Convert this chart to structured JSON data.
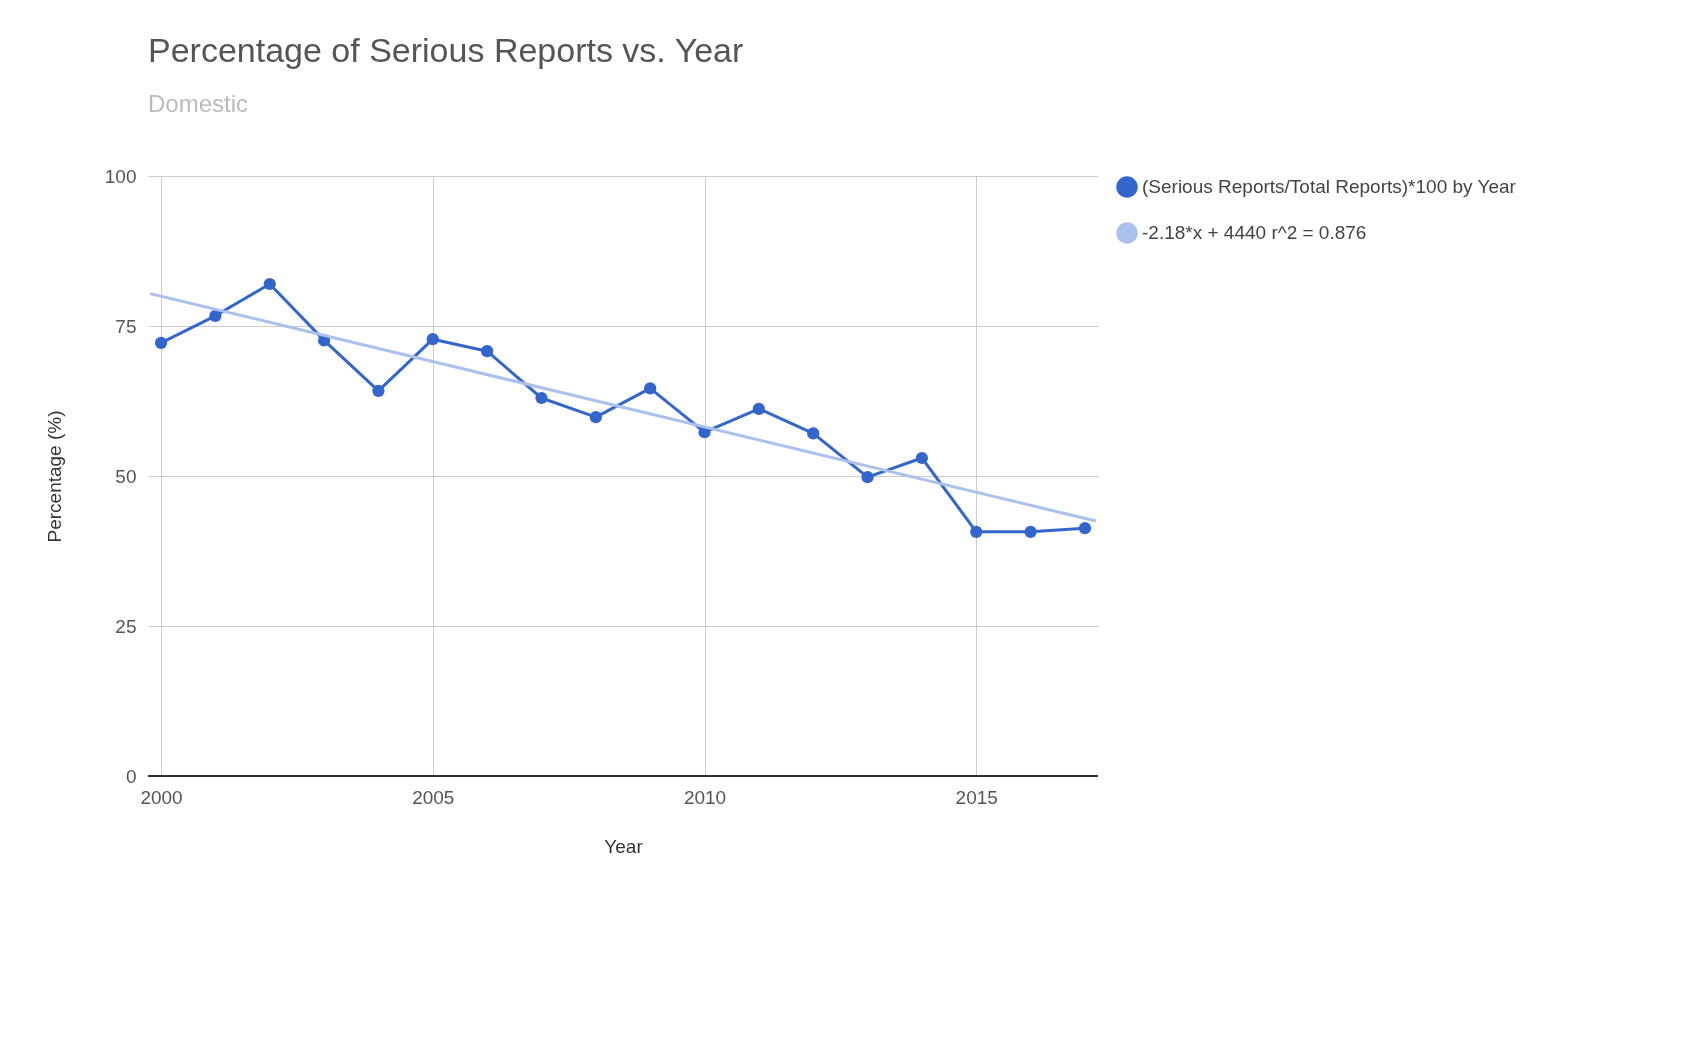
{
  "chart_data": {
    "type": "line",
    "title": "Percentage of Serious Reports vs. Year",
    "subtitle": "Domestic",
    "xlabel": "Year",
    "ylabel": "Percentage (%)",
    "x": [
      2000,
      2001,
      2002,
      2003,
      2004,
      2005,
      2006,
      2007,
      2008,
      2009,
      2010,
      2011,
      2012,
      2013,
      2014,
      2015,
      2016,
      2017
    ],
    "series": [
      {
        "name": "(Serious Reports/Total Reports)*100 by Year",
        "color": "#3366cc",
        "marker": "circle",
        "values": [
          72.2,
          76.7,
          82.0,
          72.6,
          64.2,
          72.8,
          70.8,
          63.0,
          59.8,
          64.6,
          57.3,
          61.2,
          57.1,
          49.8,
          53.0,
          40.7,
          40.7,
          41.3
        ]
      },
      {
        "name": "-2.18*x + 4440 r^2 = 0.876",
        "color": "#aac0ee",
        "type": "line",
        "marker": "none",
        "x": [
          1999.8,
          2017.2
        ],
        "values": [
          80.4,
          42.5
        ]
      }
    ],
    "xlim": [
      1999.76,
      2017.24
    ],
    "xticks": [
      {
        "value": 2000,
        "label": "2000"
      },
      {
        "value": 2005,
        "label": "2005"
      },
      {
        "value": 2010,
        "label": "2010"
      },
      {
        "value": 2015,
        "label": "2015"
      }
    ],
    "ylim": [
      0,
      100
    ],
    "yticks": [
      0,
      25,
      50,
      75,
      100
    ],
    "grid": true,
    "legend": "top right"
  }
}
